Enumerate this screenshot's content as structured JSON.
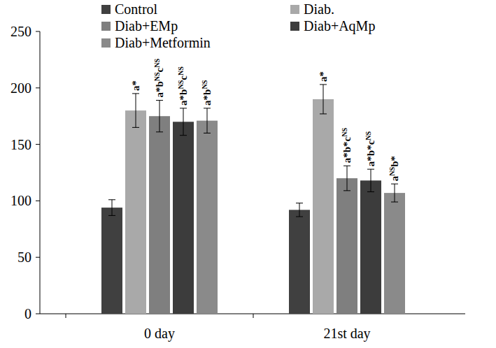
{
  "chart_data": {
    "type": "bar",
    "categories": [
      "0 day",
      "21st day"
    ],
    "ylim": [
      0,
      250
    ],
    "yticks": [
      0,
      50,
      100,
      150,
      200,
      250
    ],
    "grid": false,
    "legend": "top",
    "series": [
      {
        "name": "Control",
        "color": "#404040",
        "values": [
          94,
          92
        ],
        "errors": [
          7,
          6
        ],
        "annotations": [
          null,
          null
        ]
      },
      {
        "name": "Diab.",
        "color": "#a9a9a9",
        "values": [
          180,
          190
        ],
        "errors": [
          15,
          13
        ],
        "annotations": [
          [
            {
              "text": "a*"
            }
          ],
          [
            {
              "text": "a*"
            }
          ]
        ]
      },
      {
        "name": "Diab+EMp",
        "color": "#7f7f7f",
        "values": [
          175,
          120
        ],
        "errors": [
          14,
          11
        ],
        "annotations": [
          [
            {
              "text": "a*b"
            },
            {
              "text": "NS",
              "sup": true
            },
            {
              "text": "c"
            },
            {
              "text": "NS",
              "sup": true
            }
          ],
          [
            {
              "text": "a*b*c"
            },
            {
              "text": "NS",
              "sup": true
            }
          ]
        ]
      },
      {
        "name": "Diab+AqMp",
        "color": "#3c3c3c",
        "values": [
          170,
          118
        ],
        "errors": [
          12,
          10
        ],
        "annotations": [
          [
            {
              "text": "a*b"
            },
            {
              "text": "NS",
              "sup": true
            },
            {
              "text": "c"
            },
            {
              "text": "NS",
              "sup": true
            }
          ],
          [
            {
              "text": "a*b*c"
            },
            {
              "text": "NS",
              "sup": true
            }
          ]
        ]
      },
      {
        "name": "Diab+Metformin",
        "color": "#8a8a8a",
        "values": [
          171,
          107
        ],
        "errors": [
          11,
          8
        ],
        "annotations": [
          [
            {
              "text": "a*b"
            },
            {
              "text": "NS",
              "sup": true
            }
          ],
          [
            {
              "text": "a"
            },
            {
              "text": "NS",
              "sup": true
            },
            {
              "text": "b*"
            }
          ]
        ]
      }
    ]
  }
}
